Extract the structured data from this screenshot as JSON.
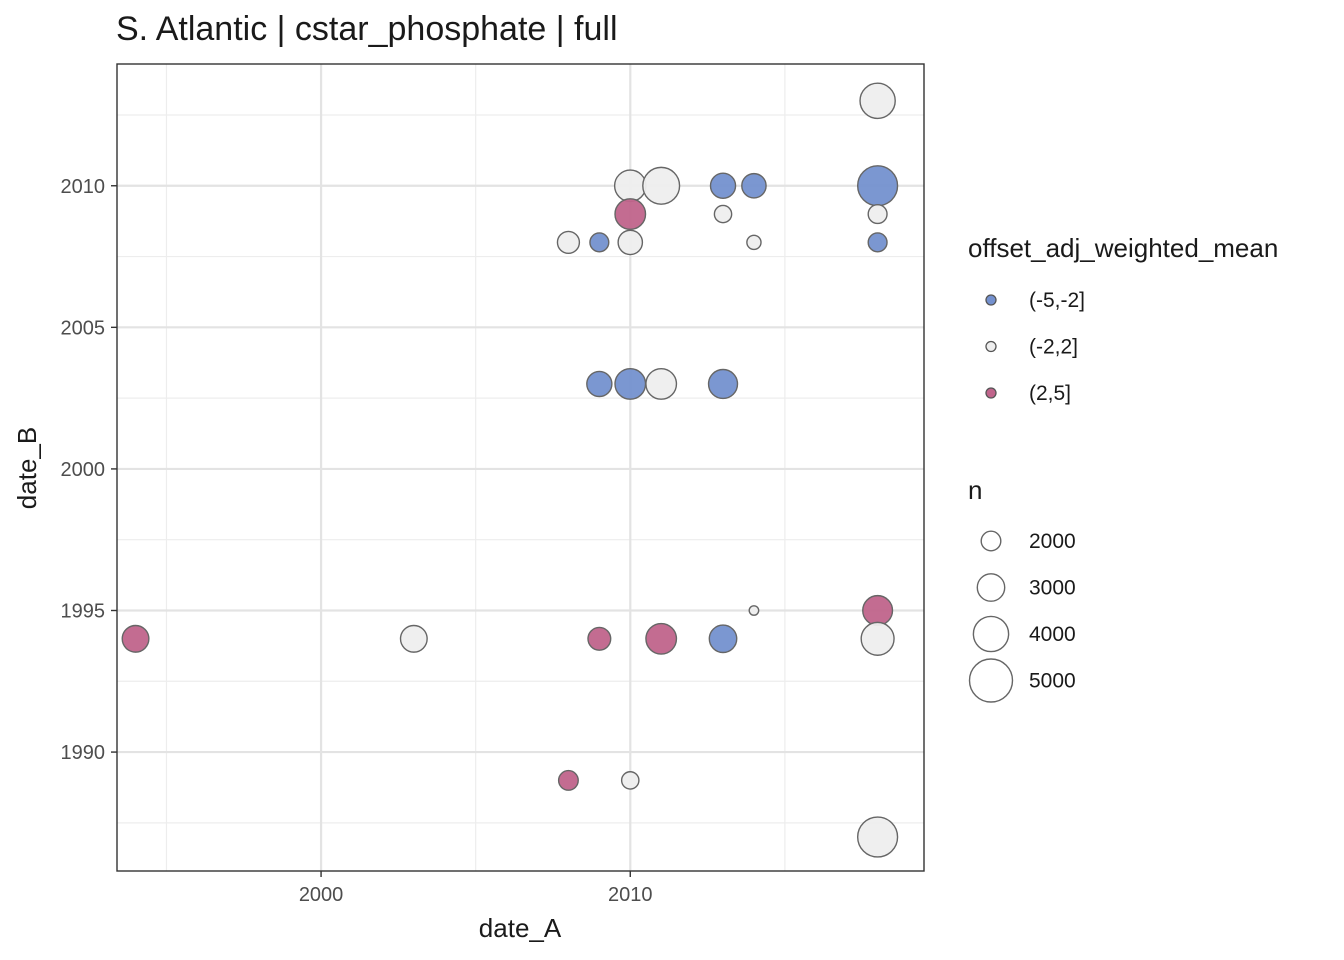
{
  "chart_data": {
    "type": "scatter",
    "title": "S. Atlantic | cstar_phosphate | full",
    "xlabel": "date_A",
    "ylabel": "date_B",
    "xlim": [
      1993.4,
      2019.5
    ],
    "ylim": [
      1985.8,
      2014.3
    ],
    "x_ticks": [
      2000,
      2010
    ],
    "y_ticks": [
      1990,
      1995,
      2000,
      2005,
      2010
    ],
    "grid": true,
    "legend_position": "right",
    "color_legend": {
      "title": "offset_adj_weighted_mean",
      "entries": [
        {
          "label": "(-5,-2]",
          "color": "#7491CF"
        },
        {
          "label": "(-2,2]",
          "color": "#EEEEEE"
        },
        {
          "label": "(2,5]",
          "color": "#C0648B"
        }
      ]
    },
    "size_legend": {
      "title": "n",
      "entries": [
        {
          "label": "2000",
          "value": 2000
        },
        {
          "label": "3000",
          "value": 3000
        },
        {
          "label": "4000",
          "value": 4000
        },
        {
          "label": "5000",
          "value": 5000
        }
      ]
    },
    "points": [
      {
        "x": 2018,
        "y": 2013,
        "group": "(-2,2]",
        "n": 4000
      },
      {
        "x": 2010,
        "y": 2010,
        "group": "(-2,2]",
        "n": 3500
      },
      {
        "x": 2011,
        "y": 2010,
        "group": "(-2,2]",
        "n": 4200
      },
      {
        "x": 2013,
        "y": 2010,
        "group": "(-5,-2]",
        "n": 2700
      },
      {
        "x": 2014,
        "y": 2010,
        "group": "(-5,-2]",
        "n": 2600
      },
      {
        "x": 2018,
        "y": 2010,
        "group": "(-5,-2]",
        "n": 4600
      },
      {
        "x": 2010,
        "y": 2009,
        "group": "(2,5]",
        "n": 3400
      },
      {
        "x": 2013,
        "y": 2009,
        "group": "(-2,2]",
        "n": 1700
      },
      {
        "x": 2018,
        "y": 2009,
        "group": "(-2,2]",
        "n": 1900
      },
      {
        "x": 2008,
        "y": 2008,
        "group": "(-2,2]",
        "n": 2300
      },
      {
        "x": 2009,
        "y": 2008,
        "group": "(-5,-2]",
        "n": 1900
      },
      {
        "x": 2010,
        "y": 2008,
        "group": "(-2,2]",
        "n": 2600
      },
      {
        "x": 2014,
        "y": 2008,
        "group": "(-2,2]",
        "n": 1300
      },
      {
        "x": 2018,
        "y": 2008,
        "group": "(-5,-2]",
        "n": 1900
      },
      {
        "x": 2009,
        "y": 2003,
        "group": "(-5,-2]",
        "n": 2700
      },
      {
        "x": 2010,
        "y": 2003,
        "group": "(-5,-2]",
        "n": 3400
      },
      {
        "x": 2011,
        "y": 2003,
        "group": "(-2,2]",
        "n": 3400
      },
      {
        "x": 2013,
        "y": 2003,
        "group": "(-5,-2]",
        "n": 3200
      },
      {
        "x": 2014,
        "y": 1995,
        "group": "(-2,2]",
        "n": 700
      },
      {
        "x": 2018,
        "y": 1995,
        "group": "(2,5]",
        "n": 3300
      },
      {
        "x": 1994,
        "y": 1994,
        "group": "(2,5]",
        "n": 2900
      },
      {
        "x": 2003,
        "y": 1994,
        "group": "(-2,2]",
        "n": 2900
      },
      {
        "x": 2009,
        "y": 1994,
        "group": "(2,5]",
        "n": 2400
      },
      {
        "x": 2011,
        "y": 1994,
        "group": "(2,5]",
        "n": 3400
      },
      {
        "x": 2013,
        "y": 1994,
        "group": "(-5,-2]",
        "n": 3000
      },
      {
        "x": 2018,
        "y": 1994,
        "group": "(-2,2]",
        "n": 3700
      },
      {
        "x": 2008,
        "y": 1989,
        "group": "(2,5]",
        "n": 2000
      },
      {
        "x": 2010,
        "y": 1989,
        "group": "(-2,2]",
        "n": 1700
      },
      {
        "x": 2018,
        "y": 1987,
        "group": "(-2,2]",
        "n": 4600
      }
    ]
  }
}
